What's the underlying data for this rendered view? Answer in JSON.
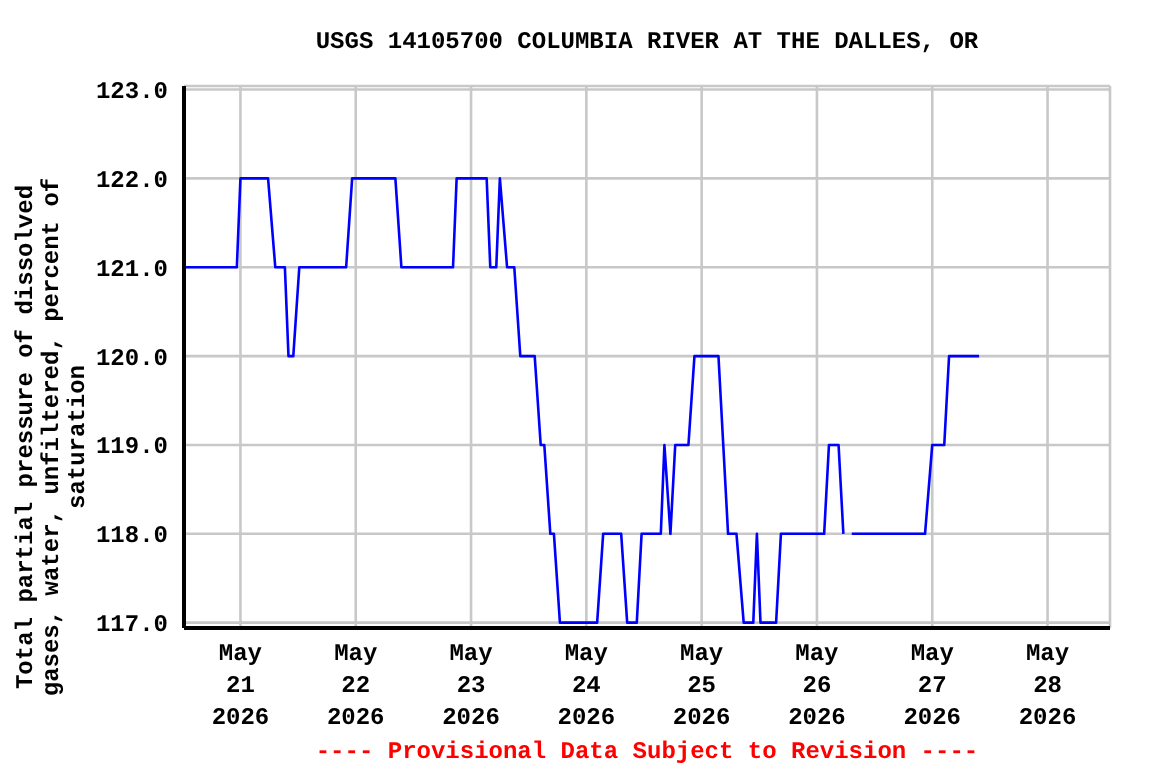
{
  "chart_data": {
    "type": "line",
    "title": "USGS 14105700 COLUMBIA RIVER AT THE DALLES, OR",
    "ylabel": "Total partial pressure of dissolved gases, water, unfiltered, percent of saturation",
    "annotations": [
      "---- Provisional Data Subject to Revision ----"
    ],
    "x": [
      "2026-05-20T12:15",
      "2026-05-20T23:15",
      "2026-05-21T00:00",
      "2026-05-21T05:45",
      "2026-05-21T07:15",
      "2026-05-21T09:15",
      "2026-05-21T10:00",
      "2026-05-21T11:00",
      "2026-05-21T12:15",
      "2026-05-21T22:00",
      "2026-05-21T23:15",
      "2026-05-22T08:15",
      "2026-05-22T09:30",
      "2026-05-22T20:15",
      "2026-05-22T21:00",
      "2026-05-23T03:15",
      "2026-05-23T04:00",
      "2026-05-23T05:15",
      "2026-05-23T06:00",
      "2026-05-23T07:30",
      "2026-05-23T09:00",
      "2026-05-23T10:15",
      "2026-05-23T13:15",
      "2026-05-23T14:30",
      "2026-05-23T15:15",
      "2026-05-23T16:30",
      "2026-05-23T17:15",
      "2026-05-23T18:30",
      "2026-05-24T02:15",
      "2026-05-24T03:30",
      "2026-05-24T07:15",
      "2026-05-24T08:30",
      "2026-05-24T10:30",
      "2026-05-24T11:30",
      "2026-05-24T15:30",
      "2026-05-24T16:15",
      "2026-05-24T17:30",
      "2026-05-24T18:30",
      "2026-05-24T21:15",
      "2026-05-24T22:30",
      "2026-05-25T03:30",
      "2026-05-25T04:30",
      "2026-05-25T05:30",
      "2026-05-25T07:15",
      "2026-05-25T08:45",
      "2026-05-25T10:45",
      "2026-05-25T11:30",
      "2026-05-25T12:15",
      "2026-05-25T15:30",
      "2026-05-25T16:30",
      "2026-05-26T01:30",
      "2026-05-26T02:30",
      "2026-05-26T04:30",
      "2026-05-26T05:30",
      "2026-05-26T06:15",
      "2026-05-26T07:15",
      "2026-05-26T22:30",
      "2026-05-27T00:00",
      "2026-05-27T02:30",
      "2026-05-27T03:30",
      "2026-05-27T09:45"
    ],
    "series": [
      {
        "color": "#0000ff",
        "values": [
          121,
          121,
          122,
          122,
          121,
          121,
          120,
          120,
          121,
          121,
          122,
          122,
          121,
          121,
          122,
          122,
          121,
          121,
          122,
          121,
          121,
          120,
          120,
          119,
          119,
          118,
          118,
          117,
          117,
          118,
          118,
          117,
          117,
          118,
          118,
          119,
          118,
          119,
          119,
          120,
          120,
          119,
          118,
          118,
          117,
          117,
          118,
          117,
          117,
          118,
          118,
          119,
          119,
          118,
          null,
          118,
          118,
          119,
          119,
          120,
          120
        ]
      }
    ],
    "xlim": [
      "2026-05-20T12:15",
      "2026-05-28T13:00"
    ],
    "xticks": [
      {
        "value": "2026-05-21",
        "label": "May 21 2026"
      },
      {
        "value": "2026-05-22",
        "label": "May 22 2026"
      },
      {
        "value": "2026-05-23",
        "label": "May 23 2026"
      },
      {
        "value": "2026-05-24",
        "label": "May 24 2026"
      },
      {
        "value": "2026-05-25",
        "label": "May 25 2026"
      },
      {
        "value": "2026-05-26",
        "label": "May 26 2026"
      },
      {
        "value": "2026-05-27",
        "label": "May 27 2026"
      },
      {
        "value": "2026-05-28",
        "label": "May 28 2026"
      }
    ],
    "ylim": [
      116.94,
      123.04
    ],
    "yticks": [
      {
        "value": 117,
        "label": "117.0"
      },
      {
        "value": 118,
        "label": "118.0"
      },
      {
        "value": 119,
        "label": "119.0"
      },
      {
        "value": 120,
        "label": "120.0"
      },
      {
        "value": 121,
        "label": "121.0"
      },
      {
        "value": 122,
        "label": "122.0"
      },
      {
        "value": 123,
        "label": "123.0"
      }
    ],
    "grid": true,
    "marker": "none",
    "line_style": "solid"
  }
}
